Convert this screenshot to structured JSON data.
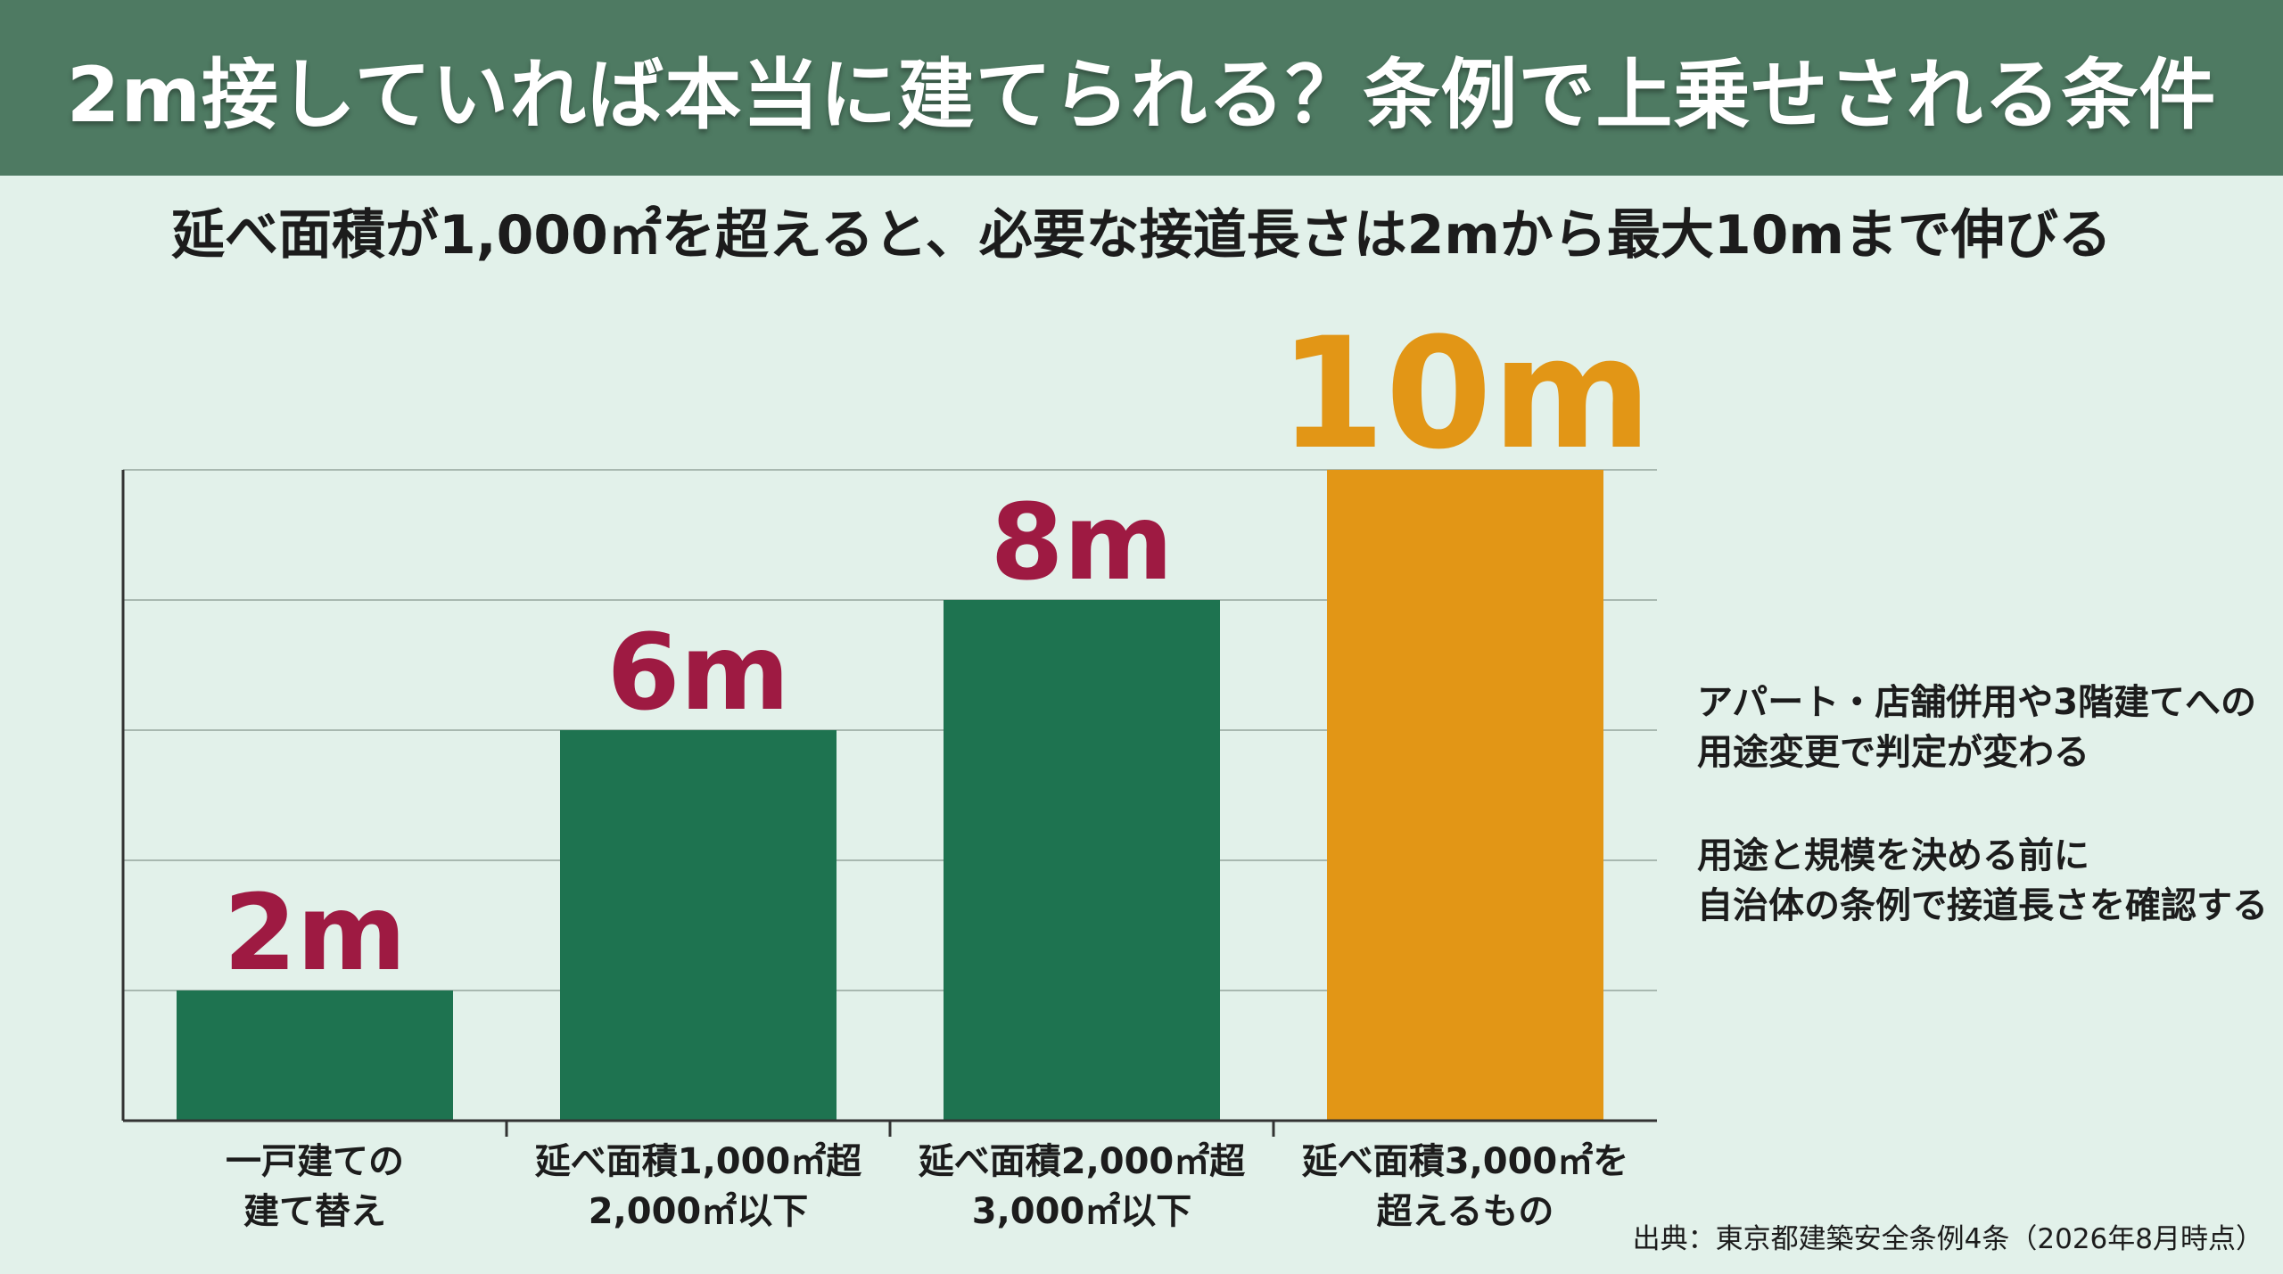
{
  "title": "2m接していれば本当に建てられる？条例で上乗せされる条件",
  "subtitle": "延べ面積が1,000㎡を超えると、必要な接道長さは2mから最大10mまで伸びる",
  "chart_data": {
    "type": "bar",
    "categories": [
      [
        "一戸建ての",
        "建て替え"
      ],
      [
        "延べ面積1,000㎡超",
        "2,000㎡以下"
      ],
      [
        "延べ面積2,000㎡超",
        "3,000㎡以下"
      ],
      [
        "延べ面積3,000㎡を",
        "超えるもの"
      ]
    ],
    "values": [
      2,
      6,
      8,
      10
    ],
    "value_labels": [
      "2m",
      "6m",
      "8m",
      "10m"
    ],
    "unit": "m",
    "ylim": [
      0,
      10
    ],
    "grid": true,
    "gridline_step": 2,
    "bar_colors": [
      "#1e7350",
      "#1e7350",
      "#1e7350",
      "#e29616"
    ],
    "label_colors": [
      "#9e1a42",
      "#9e1a42",
      "#9e1a42",
      "#e29616"
    ],
    "highlight_index": 3
  },
  "notes": [
    [
      "アパート・店舗併用や3階建てへの",
      "用途変更で判定が変わる"
    ],
    [
      "用途と規模を決める前に",
      "自治体の条例で接道長さを確認する"
    ]
  ],
  "source": "出典：東京都建築安全条例4条（2026年8月時点）",
  "colors": {
    "banner": "#4e7a62",
    "background": "#e2f1ea",
    "bar_green": "#1e7350",
    "bar_orange": "#e29616",
    "label_red": "#9e1a42"
  }
}
